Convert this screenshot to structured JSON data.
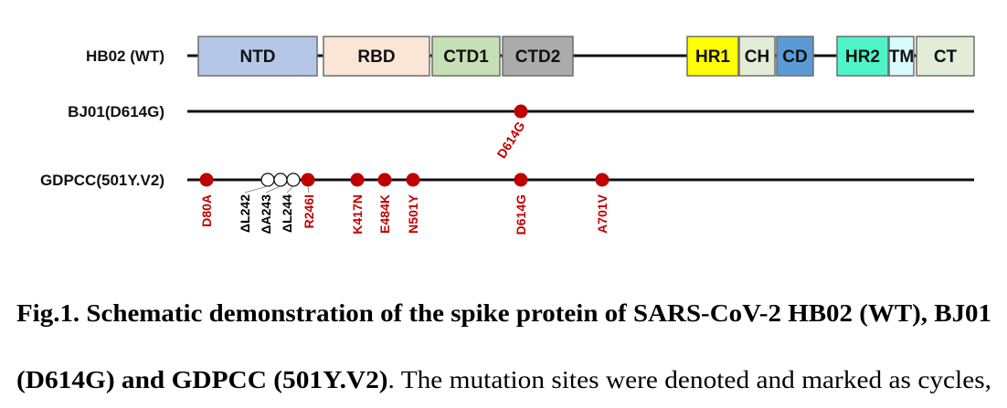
{
  "rows": [
    {
      "label": "HB02 (WT)"
    },
    {
      "label": "BJ01(D614G)"
    },
    {
      "label": "GDPCC(501Y.V2)"
    }
  ],
  "domains": [
    {
      "name": "NTD",
      "color": "#b4c7e7"
    },
    {
      "name": "RBD",
      "color": "#fbe5d6"
    },
    {
      "name": "CTD1",
      "color": "#c5e0b4"
    },
    {
      "name": "CTD2",
      "color": "#ababab"
    },
    {
      "name": "HR1",
      "color": "#ffff00"
    },
    {
      "name": "CH",
      "color": "#e2ecd6"
    },
    {
      "name": "CD",
      "color": "#5b9bd5"
    },
    {
      "name": "HR2",
      "color": "#4df5c8"
    },
    {
      "name": "TM",
      "color": "#d8fbff"
    },
    {
      "name": "CT",
      "color": "#e2ecd6"
    }
  ],
  "mutations": {
    "BJ01": [
      {
        "name": "D614G",
        "type": "substitution"
      }
    ],
    "GDPCC": [
      {
        "name": "D80A",
        "type": "substitution"
      },
      {
        "name": "ΔL242",
        "type": "deletion"
      },
      {
        "name": "ΔA243",
        "type": "deletion"
      },
      {
        "name": "ΔL244",
        "type": "deletion"
      },
      {
        "name": "R246I",
        "type": "substitution"
      },
      {
        "name": "K417N",
        "type": "substitution"
      },
      {
        "name": "E484K",
        "type": "substitution"
      },
      {
        "name": "N501Y",
        "type": "substitution"
      },
      {
        "name": "D614G",
        "type": "substitution"
      },
      {
        "name": "A701V",
        "type": "substitution"
      }
    ]
  },
  "colors": {
    "substitution": "#c00000",
    "deletion_text": "#000000"
  },
  "caption": {
    "bold1": "Fig.1. Schematic demonstration of the spike protein of SARS-CoV-2 HB02 (WT), BJ01",
    "bold2": "(D614G) and GDPCC (501Y.V2)",
    "normal2": ". The mutation sites were denoted and marked as cycles,"
  }
}
